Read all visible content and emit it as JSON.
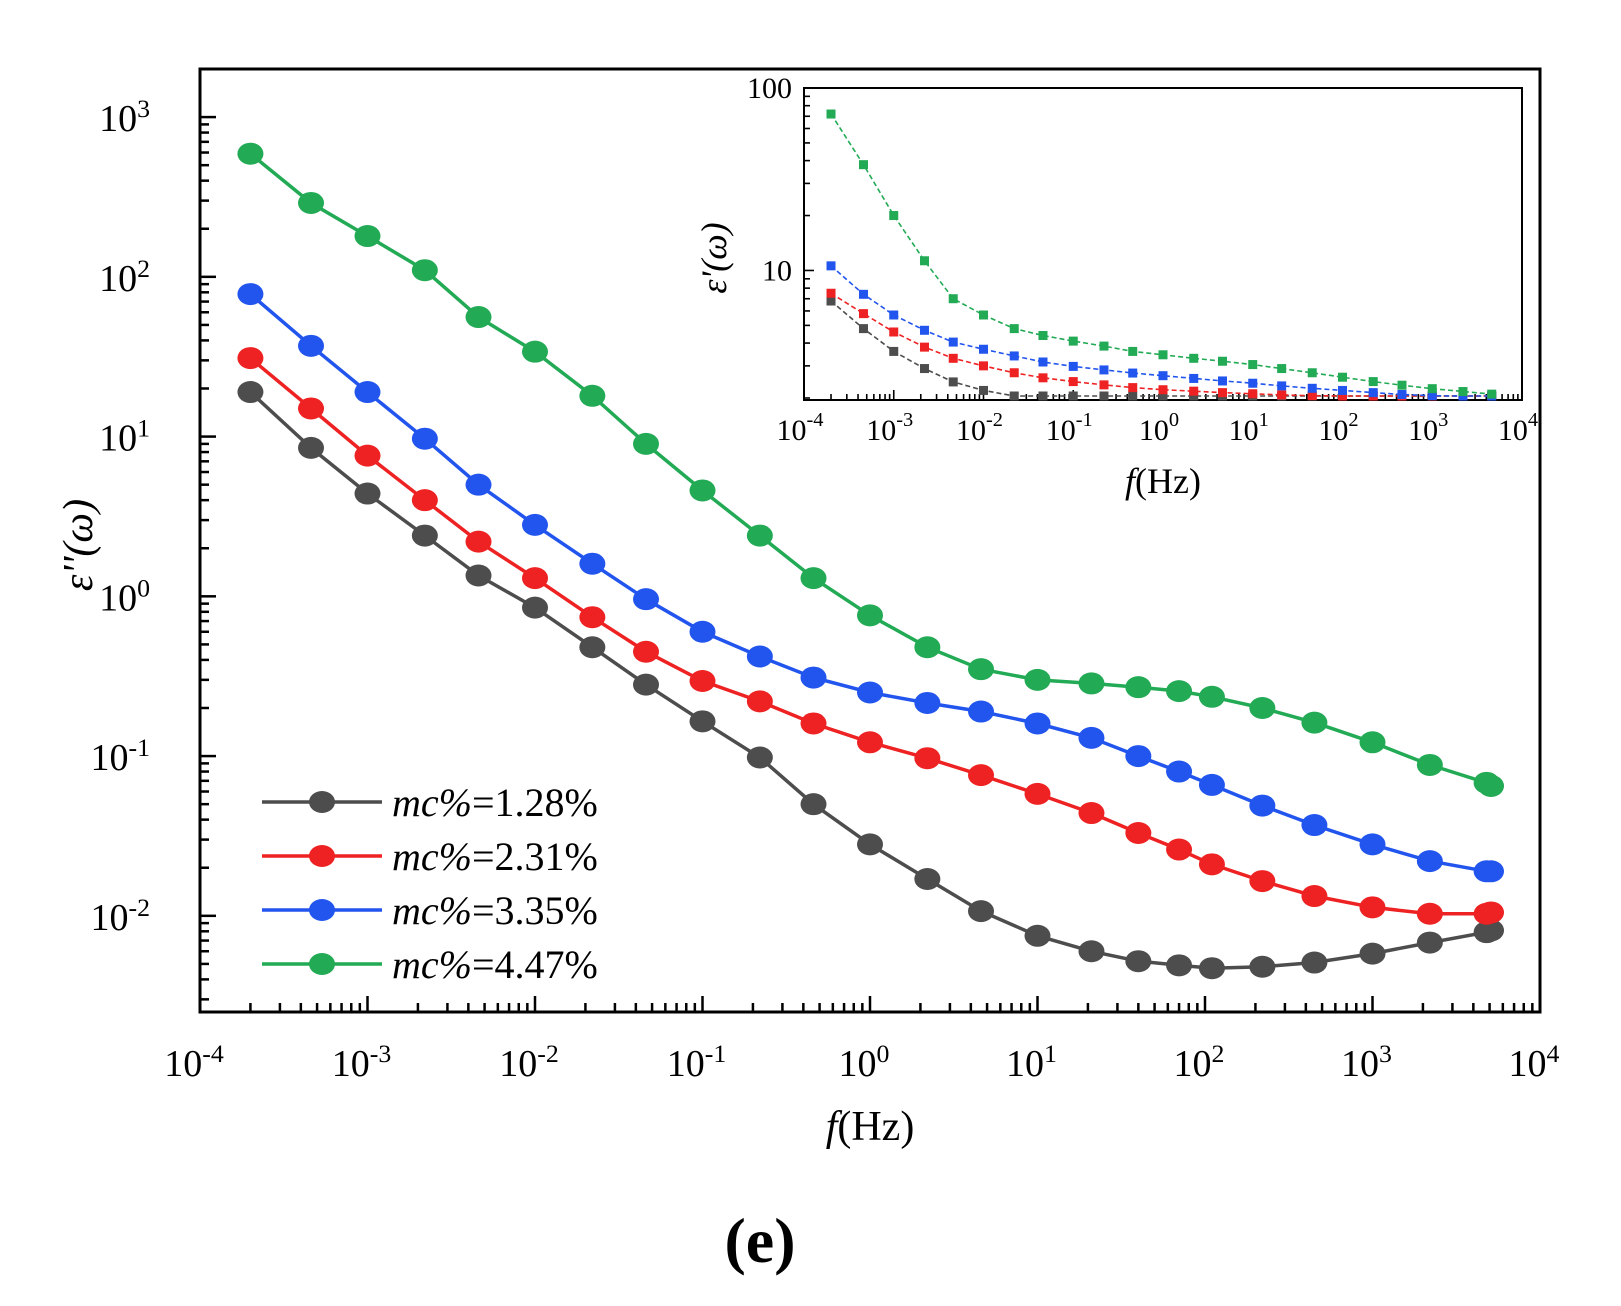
{
  "panel_label": "(e)",
  "chart_data": [
    {
      "id": "main",
      "type": "line",
      "title": "",
      "xlabel_italic": "f",
      "xlabel_rest": "(Hz)",
      "ylabel": "ε''(ω)",
      "xscale": "log",
      "yscale": "log",
      "xlim": [
        0.0001,
        10000
      ],
      "ylim": [
        0.0025,
        2000
      ],
      "x_ticks": [
        {
          "mant": "10",
          "exp": "-4"
        },
        {
          "mant": "10",
          "exp": "-3"
        },
        {
          "mant": "10",
          "exp": "-2"
        },
        {
          "mant": "10",
          "exp": "-1"
        },
        {
          "mant": "10",
          "exp": "0"
        },
        {
          "mant": "10",
          "exp": "1"
        },
        {
          "mant": "10",
          "exp": "2"
        },
        {
          "mant": "10",
          "exp": "3"
        },
        {
          "mant": "10",
          "exp": "4"
        }
      ],
      "y_ticks": [
        {
          "mant": "10",
          "exp": "-2"
        },
        {
          "mant": "10",
          "exp": "-1"
        },
        {
          "mant": "10",
          "exp": "0"
        },
        {
          "mant": "10",
          "exp": "1"
        },
        {
          "mant": "10",
          "exp": "2"
        },
        {
          "mant": "10",
          "exp": "3"
        }
      ],
      "legend_position": "bottom-left",
      "x": [
        0.0002,
        0.00046,
        0.001,
        0.0022,
        0.0046,
        0.01,
        0.022,
        0.046,
        0.1,
        0.22,
        0.46,
        1,
        2.2,
        4.6,
        10,
        21,
        40,
        70,
        110,
        220,
        450,
        1000,
        2200,
        4800,
        5100
      ],
      "series": [
        {
          "name": "1.28%",
          "label_prefix": "mc%",
          "label_value": "=1.28%",
          "color": "#4d4d4d",
          "values": [
            19,
            8.5,
            4.4,
            2.4,
            1.35,
            0.85,
            0.48,
            0.28,
            0.165,
            0.098,
            0.05,
            0.028,
            0.017,
            0.0107,
            0.0075,
            0.006,
            0.0052,
            0.0049,
            0.0047,
            0.0048,
            0.0051,
            0.0058,
            0.0068,
            0.0079,
            0.0081
          ]
        },
        {
          "name": "2.31%",
          "label_prefix": "mc%",
          "label_value": "=2.31%",
          "color": "#ee2222",
          "values": [
            31,
            15,
            7.6,
            4.0,
            2.2,
            1.3,
            0.74,
            0.45,
            0.295,
            0.22,
            0.16,
            0.122,
            0.097,
            0.076,
            0.058,
            0.044,
            0.033,
            0.026,
            0.021,
            0.0165,
            0.0133,
            0.0113,
            0.0103,
            0.0103,
            0.0105
          ]
        },
        {
          "name": "3.35%",
          "label_prefix": "mc%",
          "label_value": "=3.35%",
          "color": "#2255ee",
          "values": [
            78,
            37,
            19,
            9.7,
            5.0,
            2.8,
            1.6,
            0.96,
            0.6,
            0.42,
            0.31,
            0.25,
            0.215,
            0.19,
            0.16,
            0.13,
            0.1,
            0.08,
            0.066,
            0.049,
            0.037,
            0.028,
            0.022,
            0.019,
            0.019
          ]
        },
        {
          "name": "4.47%",
          "label_prefix": "mc%",
          "label_value": "=4.47%",
          "color": "#22aa55",
          "values": [
            590,
            290,
            180,
            110,
            56,
            34,
            18,
            9.0,
            4.6,
            2.4,
            1.3,
            0.76,
            0.48,
            0.35,
            0.3,
            0.285,
            0.27,
            0.255,
            0.235,
            0.2,
            0.162,
            0.122,
            0.088,
            0.068,
            0.065
          ]
        }
      ]
    },
    {
      "id": "inset",
      "type": "line",
      "title": "",
      "xlabel_italic": "f",
      "xlabel_rest": "(Hz)",
      "ylabel": "ε'(ω)",
      "xscale": "log",
      "yscale": "log",
      "xlim": [
        0.0001,
        10000
      ],
      "ylim": [
        1.95,
        100
      ],
      "x_ticks": [
        {
          "mant": "10",
          "exp": "-4"
        },
        {
          "mant": "10",
          "exp": "-3"
        },
        {
          "mant": "10",
          "exp": "-2"
        },
        {
          "mant": "10",
          "exp": "-1"
        },
        {
          "mant": "10",
          "exp": "0"
        },
        {
          "mant": "10",
          "exp": "1"
        },
        {
          "mant": "10",
          "exp": "2"
        },
        {
          "mant": "10",
          "exp": "3"
        },
        {
          "mant": "10",
          "exp": "4"
        }
      ],
      "y_ticks": [
        {
          "label": "10",
          "value": 10
        },
        {
          "label": "100",
          "value": 100
        }
      ],
      "x": [
        0.0002,
        0.00046,
        0.001,
        0.0022,
        0.0046,
        0.01,
        0.022,
        0.046,
        0.1,
        0.22,
        0.46,
        1,
        2.2,
        4.6,
        10,
        21,
        46,
        100,
        220,
        460,
        1000,
        2200,
        4600
      ],
      "series": [
        {
          "name": "1.28%",
          "color": "#4d4d4d",
          "values": [
            6.8,
            4.8,
            3.6,
            2.9,
            2.45,
            2.2,
            2.05,
            1.98,
            1.96,
            1.96,
            1.96,
            1.96,
            1.96,
            1.96,
            1.96,
            1.96,
            1.96,
            1.96,
            1.96,
            1.96,
            1.96,
            1.96,
            1.96
          ]
        },
        {
          "name": "2.31%",
          "color": "#ee2222",
          "values": [
            7.5,
            5.8,
            4.6,
            3.8,
            3.3,
            3.0,
            2.75,
            2.58,
            2.46,
            2.36,
            2.28,
            2.22,
            2.18,
            2.14,
            2.11,
            2.08,
            2.06,
            2.04,
            2.02,
            2.01,
            2.0,
            1.99,
            1.98
          ]
        },
        {
          "name": "3.35%",
          "color": "#2255ee",
          "values": [
            10.6,
            7.4,
            5.7,
            4.7,
            4.05,
            3.7,
            3.4,
            3.15,
            2.98,
            2.85,
            2.74,
            2.65,
            2.56,
            2.48,
            2.41,
            2.33,
            2.26,
            2.2,
            2.14,
            2.09,
            2.06,
            2.04,
            2.03
          ]
        },
        {
          "name": "4.47%",
          "color": "#22aa55",
          "values": [
            72,
            38,
            20,
            11.3,
            7.0,
            5.7,
            4.8,
            4.4,
            4.1,
            3.85,
            3.6,
            3.45,
            3.3,
            3.18,
            3.05,
            2.9,
            2.75,
            2.6,
            2.46,
            2.35,
            2.25,
            2.17,
            2.1
          ]
        }
      ]
    }
  ]
}
